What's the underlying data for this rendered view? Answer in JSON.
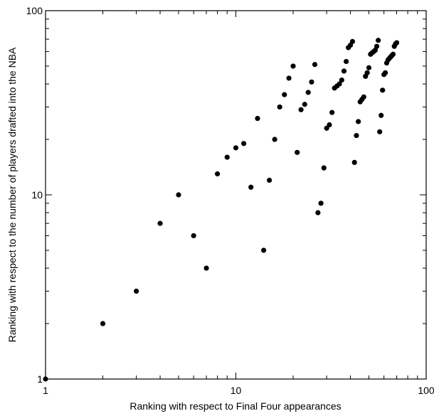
{
  "chart_data": {
    "type": "scatter",
    "title": "",
    "xlabel": "Ranking with respect to Final Four appearances",
    "ylabel": "Ranking with respect to the number of players drafted into the NBA",
    "xscale": "log",
    "yscale": "log",
    "xlim": [
      1,
      100
    ],
    "ylim": [
      1,
      100
    ],
    "xticks": [
      1,
      10,
      100
    ],
    "yticks": [
      1,
      10,
      100
    ],
    "xtick_labels": [
      "1",
      "10",
      "100"
    ],
    "ytick_labels": [
      "1",
      "10",
      "100"
    ],
    "grid": false,
    "legend": "none",
    "marker_color": "#000000",
    "points": [
      [
        1,
        1
      ],
      [
        2,
        2
      ],
      [
        3,
        3
      ],
      [
        4,
        7
      ],
      [
        5,
        10
      ],
      [
        6,
        6
      ],
      [
        7,
        4
      ],
      [
        8,
        13
      ],
      [
        9,
        16
      ],
      [
        10,
        18
      ],
      [
        11,
        19
      ],
      [
        12,
        11
      ],
      [
        13,
        26
      ],
      [
        14,
        5
      ],
      [
        15,
        12
      ],
      [
        16,
        20
      ],
      [
        17,
        30
      ],
      [
        18,
        35
      ],
      [
        19,
        43
      ],
      [
        20,
        50
      ],
      [
        21,
        17
      ],
      [
        22,
        29
      ],
      [
        23,
        31
      ],
      [
        24,
        36
      ],
      [
        25,
        41
      ],
      [
        26,
        51
      ],
      [
        27,
        8
      ],
      [
        28,
        9
      ],
      [
        29,
        14
      ],
      [
        30,
        23
      ],
      [
        31,
        24
      ],
      [
        32,
        28
      ],
      [
        33,
        38
      ],
      [
        34,
        39
      ],
      [
        35,
        40
      ],
      [
        36,
        42
      ],
      [
        37,
        47
      ],
      [
        38,
        53
      ],
      [
        39,
        63
      ],
      [
        40,
        65
      ],
      [
        41,
        68
      ],
      [
        42,
        15
      ],
      [
        43,
        21
      ],
      [
        44,
        25
      ],
      [
        45,
        32
      ],
      [
        46,
        33
      ],
      [
        47,
        34
      ],
      [
        48,
        44
      ],
      [
        49,
        46
      ],
      [
        50,
        49
      ],
      [
        51,
        58
      ],
      [
        52,
        59
      ],
      [
        53,
        60
      ],
      [
        54,
        61
      ],
      [
        55,
        64
      ],
      [
        56,
        69
      ],
      [
        57,
        22
      ],
      [
        58,
        27
      ],
      [
        59,
        37
      ],
      [
        60,
        45
      ],
      [
        61,
        46
      ],
      [
        62,
        52
      ],
      [
        63,
        54
      ],
      [
        64,
        55
      ],
      [
        65,
        56
      ],
      [
        66,
        57
      ],
      [
        67,
        58
      ],
      [
        68,
        64
      ],
      [
        69,
        66
      ],
      [
        70,
        67
      ]
    ]
  }
}
